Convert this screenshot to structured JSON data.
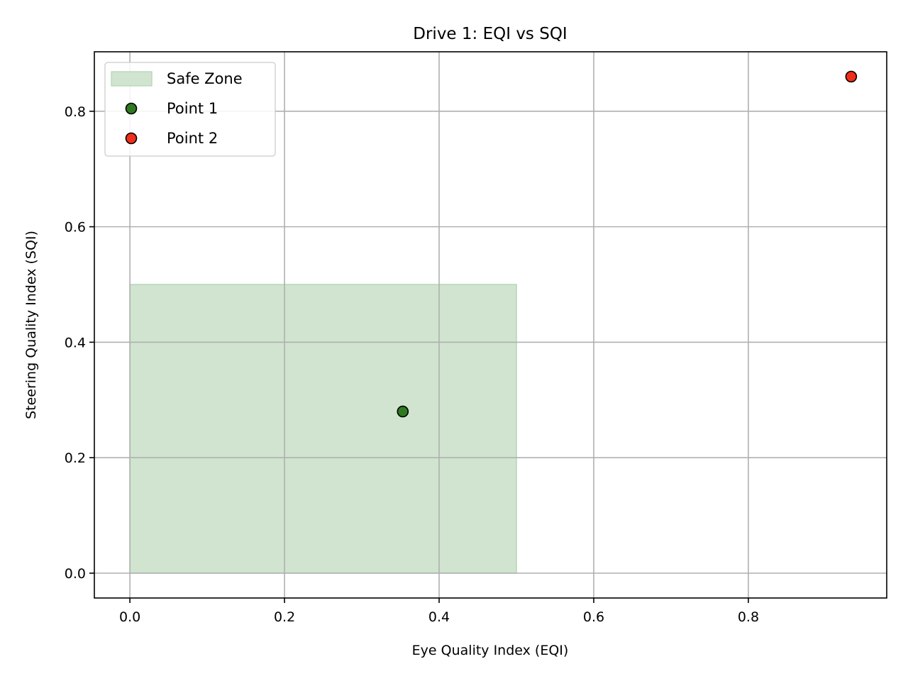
{
  "chart_data": {
    "type": "scatter",
    "title": "Drive 1: EQI vs SQI",
    "xlabel": "Eye Quality Index (EQI)",
    "ylabel": "Steering Quality Index (SQI)",
    "xlim": [
      -0.046,
      0.979
    ],
    "ylim": [
      -0.043,
      0.903
    ],
    "xticks": [
      0.0,
      0.2,
      0.4,
      0.6,
      0.8
    ],
    "yticks": [
      0.0,
      0.2,
      0.4,
      0.6,
      0.8
    ],
    "xtick_labels": [
      "0.0",
      "0.2",
      "0.4",
      "0.6",
      "0.8"
    ],
    "ytick_labels": [
      "0.0",
      "0.2",
      "0.4",
      "0.6",
      "0.8"
    ],
    "grid": true,
    "legend_position": "upper-left",
    "regions": [
      {
        "name": "Safe Zone",
        "x": [
          0.0,
          0.5
        ],
        "y": [
          0.0,
          0.5
        ],
        "color": "#d0e4d0",
        "edge_color": "#b5d6b5"
      }
    ],
    "series": [
      {
        "name": "Point 1",
        "x": [
          0.353
        ],
        "y": [
          0.28
        ],
        "color": "#2f7a1f"
      },
      {
        "name": "Point 2",
        "x": [
          0.933
        ],
        "y": [
          0.86
        ],
        "color": "#f02e1a"
      }
    ]
  }
}
